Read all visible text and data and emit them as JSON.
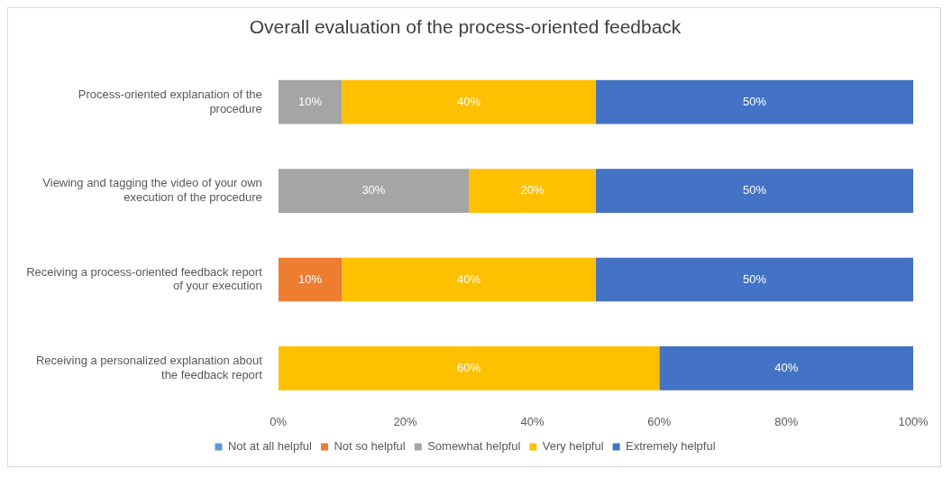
{
  "chart_data": {
    "type": "bar",
    "orientation": "horizontal",
    "stacked": true,
    "title": "Overall evaluation of the process-oriented feedback",
    "categories": [
      "Process-oriented explanation of the procedure",
      "Viewing and tagging the video of your own execution of the procedure",
      "Receiving a process-oriented feedback report of your execution",
      "Receiving a personalized explanation about the feedback report"
    ],
    "series": [
      {
        "name": "Not at all helpful",
        "color": "#5b9bd5",
        "values": [
          null,
          null,
          null,
          null
        ],
        "value_labels": [
          null,
          null,
          null,
          null
        ]
      },
      {
        "name": "Not so helpful",
        "color": "#ed7d31",
        "values": [
          null,
          null,
          10,
          null
        ],
        "value_labels": [
          null,
          null,
          "10%",
          null
        ]
      },
      {
        "name": "Somewhat helpful",
        "color": "#a5a5a5",
        "values": [
          10,
          30,
          null,
          null
        ],
        "value_labels": [
          "10%",
          "30%",
          null,
          null
        ]
      },
      {
        "name": "Very helpful",
        "color": "#ffc000",
        "values": [
          40,
          20,
          40,
          60
        ],
        "value_labels": [
          "40%",
          "20%",
          "40%",
          "60%"
        ]
      },
      {
        "name": "Extremely helpful",
        "color": "#4472c4",
        "values": [
          50,
          50,
          50,
          40
        ],
        "value_labels": [
          "50%",
          "50%",
          "50%",
          "40%"
        ]
      }
    ],
    "xlim": [
      0,
      100
    ],
    "xticks": [
      {
        "value": 0,
        "label": "0%"
      },
      {
        "value": 20,
        "label": "20%"
      },
      {
        "value": 40,
        "label": "40%"
      },
      {
        "value": 60,
        "label": "60%"
      },
      {
        "value": 80,
        "label": "80%"
      },
      {
        "value": 100,
        "label": "100%"
      }
    ],
    "legend": "bottom"
  }
}
